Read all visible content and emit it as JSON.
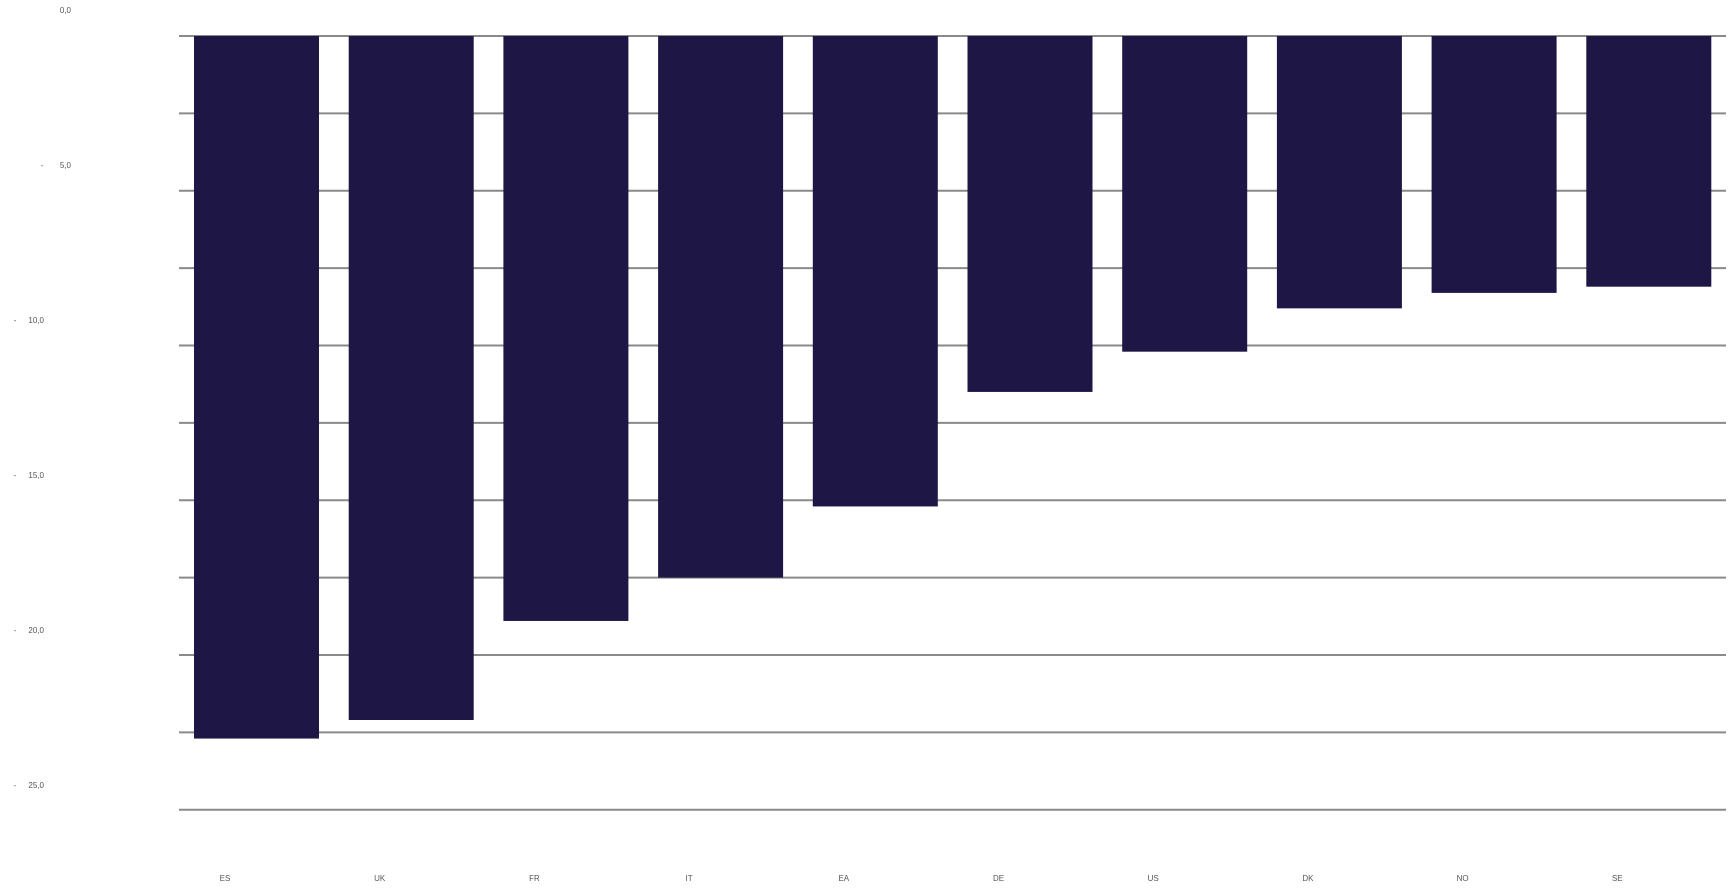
{
  "chart_data": {
    "type": "bar",
    "orientation": "vertical-downward",
    "categories": [
      "ES",
      "UK",
      "FR",
      "IT",
      "EA",
      "DE",
      "US",
      "DK",
      "NO",
      "SE"
    ],
    "values": [
      -22.7,
      -22.1,
      -18.9,
      -17.5,
      -15.2,
      -11.5,
      -10.2,
      -8.8,
      -8.3,
      -8.1
    ],
    "y_tick_values": [
      0,
      5,
      10,
      15,
      20,
      25
    ],
    "y_tick_labels": [
      "0,0",
      "5,0",
      "10,0",
      "15,0",
      "20,0",
      "25,0"
    ],
    "ylim": [
      -25,
      0
    ],
    "y_axis_inverted": true,
    "grid": true,
    "grid_step": 2.5,
    "legend": "none",
    "title": "",
    "xlabel": "",
    "ylabel": "",
    "colors": {
      "bar": "#1e1645",
      "grid": "#8a8a8a",
      "text": "#555555",
      "background": "#ffffff"
    }
  }
}
